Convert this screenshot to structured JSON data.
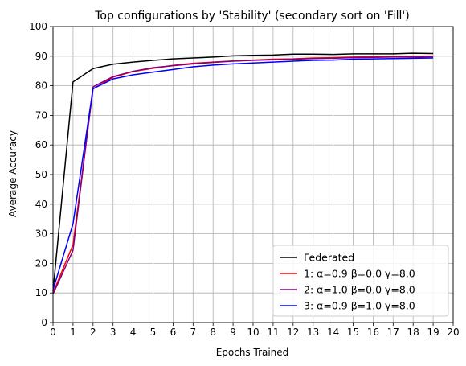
{
  "chart_data": {
    "type": "line",
    "title": "Top configurations by 'Stability' (secondary sort on 'Fill')",
    "xlabel": "Epochs Trained",
    "ylabel": "Average Accuracy",
    "xlim": [
      0,
      20
    ],
    "ylim": [
      0,
      100
    ],
    "xticks": [
      0,
      1,
      2,
      3,
      4,
      5,
      6,
      7,
      8,
      9,
      10,
      11,
      12,
      13,
      14,
      15,
      16,
      17,
      18,
      19,
      20
    ],
    "yticks": [
      0,
      10,
      20,
      30,
      40,
      50,
      60,
      70,
      80,
      90,
      100
    ],
    "grid": true,
    "legend_position": "lower-right",
    "x": [
      0,
      1,
      2,
      3,
      4,
      5,
      6,
      7,
      8,
      9,
      10,
      11,
      12,
      13,
      14,
      15,
      16,
      17,
      18,
      19
    ],
    "series": [
      {
        "name": "Federated",
        "color": "#000000",
        "values": [
          10.5,
          81.3,
          85.8,
          87.3,
          88.0,
          88.6,
          89.1,
          89.4,
          89.7,
          90.1,
          90.3,
          90.4,
          90.7,
          90.7,
          90.6,
          90.8,
          90.8,
          90.8,
          91.0,
          90.9
        ]
      },
      {
        "name": "1: α=0.9  β=0.0  γ=8.0",
        "color": "#ff0000",
        "values": [
          10.0,
          26.3,
          78.9,
          82.9,
          84.8,
          85.9,
          86.9,
          87.6,
          88.0,
          88.4,
          88.7,
          89.0,
          89.1,
          89.4,
          89.5,
          89.7,
          89.8,
          89.9,
          89.9,
          90.0
        ]
      },
      {
        "name": "2: α=1.0  β=0.0  γ=8.0",
        "color": "#800080",
        "values": [
          9.6,
          24.4,
          79.6,
          83.1,
          84.9,
          86.1,
          86.8,
          87.4,
          87.9,
          88.3,
          88.6,
          88.8,
          89.0,
          89.2,
          89.3,
          89.5,
          89.6,
          89.7,
          89.7,
          89.8
        ]
      },
      {
        "name": "3: α=0.9  β=1.0  γ=8.0",
        "color": "#0000ff",
        "values": [
          11.0,
          33.4,
          79.0,
          82.3,
          83.7,
          84.6,
          85.5,
          86.4,
          87.0,
          87.4,
          87.7,
          88.0,
          88.3,
          88.6,
          88.7,
          89.0,
          89.1,
          89.2,
          89.3,
          89.4
        ]
      }
    ]
  }
}
